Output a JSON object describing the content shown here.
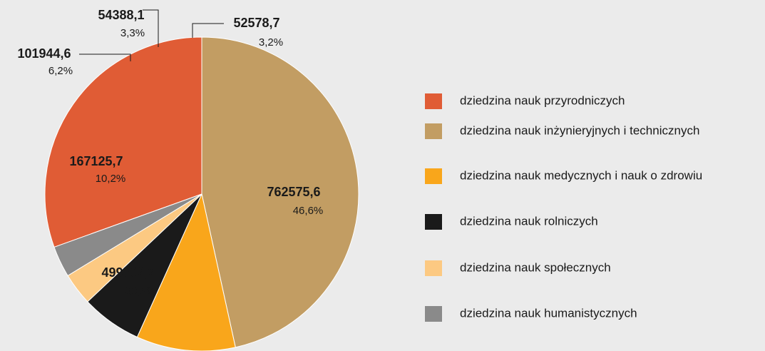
{
  "chart_data": {
    "type": "pie",
    "categories": [
      "dziedzina nauk przyrodniczych",
      "dziedzina nauk inżynieryjnych i technicznych",
      "dziedzina nauk medycznych i nauk o zdrowiu",
      "dziedzina nauk rolniczych",
      "dziedzina nauk społecznych",
      "dziedzina nauk humanistycznych"
    ],
    "values": [
      499502.2,
      762575.6,
      167125.7,
      101944.6,
      54388.1,
      52578.7
    ],
    "value_labels": [
      "499502,2",
      "762575,6",
      "167125,7",
      "101944,6",
      "54388,1",
      "52578,7"
    ],
    "share_labels": [
      "30,5%",
      "46,6%",
      "10,2%",
      "6,2%",
      "3,3%",
      "3,2%"
    ],
    "colors": [
      "#e05c35",
      "#c29d63",
      "#f9a61b",
      "#1a1a1a",
      "#fcc982",
      "#8a8a8a"
    ],
    "legend": "right"
  }
}
